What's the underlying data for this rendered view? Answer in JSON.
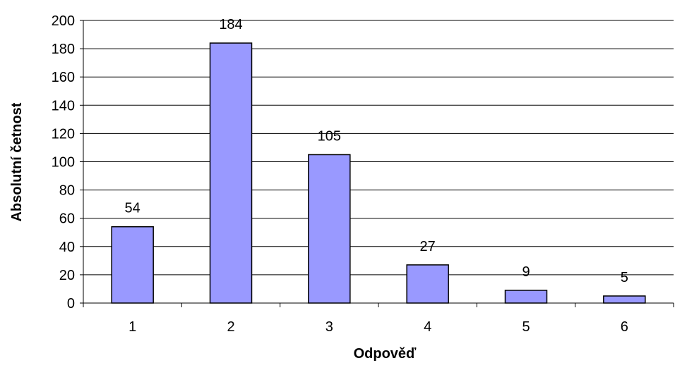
{
  "chart_data": {
    "type": "bar",
    "categories": [
      "1",
      "2",
      "3",
      "4",
      "5",
      "6"
    ],
    "values": [
      54,
      184,
      105,
      27,
      9,
      5
    ],
    "xlabel": "Odpověď",
    "ylabel": "Absolutní četnost",
    "ylim": [
      0,
      200
    ],
    "yticks": [
      0,
      20,
      40,
      60,
      80,
      100,
      120,
      140,
      160,
      180,
      200
    ],
    "grid": "horizontal",
    "legend": "none",
    "data_labels": true,
    "bar_color": "#9999FF",
    "bar_edge_color": "#000000"
  }
}
